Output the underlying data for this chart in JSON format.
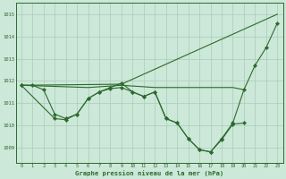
{
  "title": "Graphe pression niveau de la mer (hPa)",
  "background_color": "#cce8d8",
  "grid_color": "#aacabc",
  "line_color": "#2d6a2d",
  "marker_color": "#2d6a2d",
  "xlim": [
    -0.5,
    23.5
  ],
  "ylim": [
    1008.3,
    1015.5
  ],
  "yticks": [
    1009,
    1010,
    1011,
    1012,
    1013,
    1014,
    1015
  ],
  "xticks": [
    0,
    1,
    2,
    3,
    4,
    5,
    6,
    7,
    8,
    9,
    10,
    11,
    12,
    13,
    14,
    15,
    16,
    17,
    18,
    19,
    20,
    21,
    22,
    23
  ],
  "series1": {
    "x": [
      0,
      1,
      2,
      3,
      4,
      5,
      6,
      7,
      8,
      9,
      10,
      11,
      12,
      13,
      14,
      15,
      16,
      17,
      18,
      19,
      20,
      21,
      22,
      23
    ],
    "y": [
      1011.8,
      1011.8,
      1011.6,
      1010.5,
      1010.3,
      1010.5,
      1011.2,
      1011.5,
      1011.7,
      1011.9,
      1011.5,
      1011.3,
      1011.5,
      1010.3,
      1010.1,
      1009.4,
      1008.9,
      1008.8,
      1009.4,
      1010.1,
      1011.6,
      1012.7,
      1013.5,
      1014.6
    ]
  },
  "series2": {
    "x": [
      0,
      6,
      9,
      12,
      14,
      19,
      20
    ],
    "y": [
      1011.8,
      1011.7,
      1011.8,
      1011.7,
      1011.7,
      1011.7,
      1011.6
    ]
  },
  "series3": {
    "x": [
      0,
      9,
      23
    ],
    "y": [
      1011.8,
      1011.85,
      1015.0
    ]
  },
  "series4": {
    "x": [
      0,
      3,
      4,
      5,
      6,
      7,
      8,
      9,
      10,
      11,
      12,
      13,
      14,
      15,
      16,
      17,
      18,
      19,
      20
    ],
    "y": [
      1011.8,
      1010.3,
      1010.25,
      1010.5,
      1011.2,
      1011.5,
      1011.65,
      1011.7,
      1011.5,
      1011.3,
      1011.5,
      1010.3,
      1010.1,
      1009.4,
      1008.9,
      1008.8,
      1009.35,
      1010.05,
      1010.1
    ]
  }
}
